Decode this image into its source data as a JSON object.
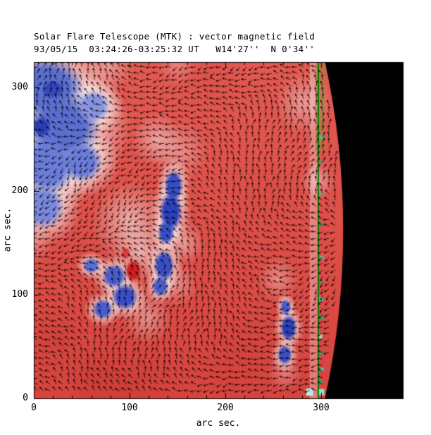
{
  "title": {
    "line1": "Solar Flare Telescope (MTK) : vector magnetic field",
    "line2": "93/05/15  03:24:26-03:25:32 UT   W14'27''  N 0'34''"
  },
  "axes": {
    "xlabel": "arc sec.",
    "ylabel": "arc sec.",
    "x_major_ticks": [
      0,
      100,
      200,
      300
    ],
    "y_major_ticks": [
      0,
      100,
      200,
      300
    ],
    "x_range": [
      0,
      385
    ],
    "y_range": [
      0,
      325
    ],
    "minor_tick_step": 20
  },
  "colors": {
    "background": "#ffffff",
    "base_red_top": "#e35a52",
    "base_red_bottom": "#d7443e",
    "frame": "#000000",
    "arrow": "#000000",
    "off_limb": "#000000",
    "limb_line_green": "#007a00",
    "negative_blue": "#4a5ccc",
    "neutral_white": "#ffffff"
  },
  "chart_data": {
    "type": "heatmap",
    "subtype": "solar vector magnetogram with overlaid transverse-field arrows",
    "title": "Solar Flare Telescope (MTK) : vector magnetic field",
    "subtitle": "93/05/15  03:24:26-03:25:32 UT   W14'27''  N 0'34''",
    "xlabel": "arc sec.",
    "ylabel": "arc sec.",
    "xlim": [
      0,
      385
    ],
    "ylim": [
      0,
      325
    ],
    "polarity_colormap": {
      "positive": "red",
      "negative": "blue",
      "neutral": "white"
    },
    "solar_limb": {
      "x_top": 304,
      "x_mid": 323,
      "x_bottom": 304,
      "off_limb_color": "#000000",
      "limb_line_x": 297,
      "limb_line_color": "#007a00"
    },
    "khaki_strip": {
      "x1": 294,
      "x2": 304,
      "y1": 238,
      "y2": 325,
      "color": "rgba(150,138,58,0.55)"
    },
    "pale_strip": {
      "x1": 288,
      "x2": 297,
      "alpha": 0.3
    },
    "negative_regions": [
      {
        "x": 12,
        "y": 300,
        "rx": 42,
        "ry": 30,
        "c": "#5a6ed0"
      },
      {
        "x": 30,
        "y": 262,
        "rx": 40,
        "ry": 34,
        "c": "#5a6ed0"
      },
      {
        "x": 14,
        "y": 225,
        "rx": 30,
        "ry": 30,
        "c": "#6a7cd8"
      },
      {
        "x": 10,
        "y": 185,
        "rx": 22,
        "ry": 22,
        "c": "#7a88dc"
      },
      {
        "x": 50,
        "y": 228,
        "rx": 22,
        "ry": 20,
        "c": "#6a7cd8"
      },
      {
        "x": 62,
        "y": 282,
        "rx": 18,
        "ry": 16,
        "c": "#8894e0"
      },
      {
        "x": 8,
        "y": 262,
        "rx": 10,
        "ry": 10,
        "c": "#2a3db4"
      },
      {
        "x": 20,
        "y": 298,
        "rx": 12,
        "ry": 9,
        "c": "#3347bc"
      },
      {
        "x": 146,
        "y": 205,
        "rx": 10,
        "ry": 16,
        "c": "#3a4ec4"
      },
      {
        "x": 143,
        "y": 180,
        "rx": 12,
        "ry": 20,
        "c": "#2c40bc"
      },
      {
        "x": 138,
        "y": 160,
        "rx": 9,
        "ry": 12,
        "c": "#3a4ec4"
      },
      {
        "x": 136,
        "y": 128,
        "rx": 11,
        "ry": 16,
        "c": "#3a4ec4"
      },
      {
        "x": 132,
        "y": 108,
        "rx": 9,
        "ry": 10,
        "c": "#4a5ccc"
      },
      {
        "x": 84,
        "y": 118,
        "rx": 13,
        "ry": 12,
        "c": "#4a5ccc"
      },
      {
        "x": 95,
        "y": 98,
        "rx": 14,
        "ry": 13,
        "c": "#3a4ec4"
      },
      {
        "x": 72,
        "y": 86,
        "rx": 11,
        "ry": 10,
        "c": "#4a5ccc"
      },
      {
        "x": 60,
        "y": 128,
        "rx": 9,
        "ry": 8,
        "c": "#5a6ed0"
      },
      {
        "x": 263,
        "y": 88,
        "rx": 6,
        "ry": 8,
        "c": "#4a5ccc"
      },
      {
        "x": 266,
        "y": 68,
        "rx": 9,
        "ry": 13,
        "c": "#2c40bc"
      },
      {
        "x": 262,
        "y": 42,
        "rx": 8,
        "ry": 10,
        "c": "#3a4ec4"
      }
    ],
    "red_spots": [
      {
        "x": 104,
        "y": 123,
        "rx": 9,
        "ry": 11,
        "c": "#cf1f1f"
      },
      {
        "x": 96,
        "y": 140,
        "rx": 5,
        "ry": 6,
        "c": "#d84040"
      }
    ],
    "light_patches": [
      {
        "x": 100,
        "y": 170,
        "r": 40,
        "a": 0.55
      },
      {
        "x": 112,
        "y": 140,
        "r": 30,
        "a": 0.5
      },
      {
        "x": 118,
        "y": 78,
        "r": 26,
        "a": 0.4
      },
      {
        "x": 152,
        "y": 238,
        "r": 30,
        "a": 0.35
      },
      {
        "x": 128,
        "y": 250,
        "r": 26,
        "a": 0.45
      },
      {
        "x": 156,
        "y": 150,
        "r": 22,
        "a": 0.45
      },
      {
        "x": 150,
        "y": 110,
        "r": 22,
        "a": 0.35
      },
      {
        "x": 255,
        "y": 115,
        "r": 22,
        "a": 0.35
      },
      {
        "x": 262,
        "y": 25,
        "r": 18,
        "a": 0.3
      },
      {
        "x": 282,
        "y": 285,
        "r": 30,
        "a": 0.4
      },
      {
        "x": 296,
        "y": 210,
        "r": 18,
        "a": 0.45
      },
      {
        "x": 80,
        "y": 322,
        "r": 25,
        "a": 0.35
      },
      {
        "x": 150,
        "y": 322,
        "r": 20,
        "a": 0.25
      },
      {
        "x": 0,
        "y": 150,
        "r": 20,
        "a": 0.3
      }
    ],
    "dark_patches": [
      {
        "x": 95,
        "y": 10,
        "r": 60,
        "a": 0.25,
        "c": "#b42a28"
      },
      {
        "x": 215,
        "y": 45,
        "r": 55,
        "a": 0.18,
        "c": "#c03330"
      },
      {
        "x": 25,
        "y": 60,
        "r": 35,
        "a": 0.2,
        "c": "#b42a28"
      },
      {
        "x": 185,
        "y": 305,
        "r": 45,
        "a": 0.15,
        "c": "#c03330"
      },
      {
        "x": 240,
        "y": 195,
        "r": 45,
        "a": 0.12,
        "c": "#c03330"
      },
      {
        "x": 60,
        "y": 20,
        "r": 30,
        "a": 0.2,
        "c": "#b42a28"
      },
      {
        "x": 205,
        "y": 155,
        "r": 30,
        "a": 0.12,
        "c": "#c03330"
      }
    ],
    "teal_patches": [
      {
        "x": 300,
        "y": 6,
        "s": 9,
        "c": "#8fe0cc"
      },
      {
        "x": 288,
        "y": 6,
        "s": 10,
        "c": "#aef0e0"
      },
      {
        "x": 299,
        "y": 16,
        "s": 6,
        "c": "#2fa070"
      },
      {
        "x": 301,
        "y": 28,
        "s": 5,
        "c": "#49c29a"
      },
      {
        "x": 300,
        "y": 44,
        "s": 5,
        "c": "#2fa070"
      },
      {
        "x": 299,
        "y": 60,
        "s": 6,
        "c": "#8fe0cc"
      },
      {
        "x": 301,
        "y": 78,
        "s": 5,
        "c": "#2fa070"
      },
      {
        "x": 300,
        "y": 96,
        "s": 6,
        "c": "#49c29a"
      },
      {
        "x": 300,
        "y": 112,
        "s": 4,
        "c": "#2fa070"
      },
      {
        "x": 301,
        "y": 136,
        "s": 5,
        "c": "#49c29a"
      },
      {
        "x": 300,
        "y": 168,
        "s": 5,
        "c": "#2fa070"
      },
      {
        "x": 301,
        "y": 198,
        "s": 4,
        "c": "#49c29a"
      },
      {
        "x": 300,
        "y": 228,
        "s": 4,
        "c": "#2fa070"
      },
      {
        "x": 300,
        "y": 252,
        "s": 5,
        "c": "#49c29a"
      }
    ],
    "vectors": {
      "grid_spacing_arcsec": 6.5,
      "style": "small black arrows over full disk",
      "dominant_direction": "toward lower/upper left with smooth spatial variation"
    }
  }
}
